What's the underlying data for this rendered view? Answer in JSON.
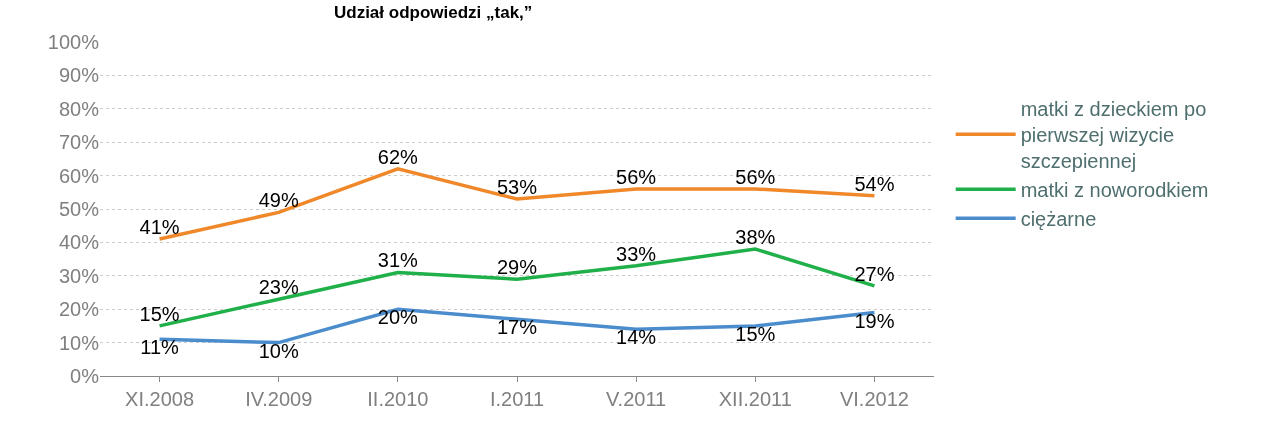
{
  "chart_data": {
    "type": "line",
    "title": "Udział odpowiedzi „tak,”",
    "categories": [
      "XI.2008",
      "IV.2009",
      "II.2010",
      "I.2011",
      "V.2011",
      "XII.2011",
      "VI.2012"
    ],
    "series": [
      {
        "name": "matki z dzieckiem po pierwszej wizycie szczepiennej",
        "color": "#f0882a",
        "values": [
          41,
          49,
          62,
          53,
          56,
          56,
          54
        ],
        "value_labels": [
          "41%",
          "49%",
          "62%",
          "53%",
          "56%",
          "56%",
          "54%"
        ]
      },
      {
        "name": "matki z noworodkiem",
        "color": "#1fb04a",
        "values": [
          15,
          23,
          31,
          29,
          33,
          38,
          27
        ],
        "value_labels": [
          "15%",
          "23%",
          "31%",
          "29%",
          "33%",
          "38%",
          "27%"
        ]
      },
      {
        "name": "ciężarne",
        "color": "#4a8ccc",
        "values": [
          11,
          10,
          20,
          17,
          14,
          15,
          19
        ],
        "value_labels": [
          "11%",
          "10%",
          "20%",
          "17%",
          "14%",
          "15%",
          "19%"
        ]
      }
    ],
    "ylim": [
      0,
      100
    ],
    "yticks": [
      {
        "value": 0,
        "label": "0%"
      },
      {
        "value": 10,
        "label": "10%"
      },
      {
        "value": 20,
        "label": "20%"
      },
      {
        "value": 30,
        "label": "30%"
      },
      {
        "value": 40,
        "label": "40%"
      },
      {
        "value": 50,
        "label": "50%"
      },
      {
        "value": 60,
        "label": "60%"
      },
      {
        "value": 70,
        "label": "70%"
      },
      {
        "value": 80,
        "label": "80%"
      },
      {
        "value": 90,
        "label": "90%"
      },
      {
        "value": 100,
        "label": "100%"
      }
    ],
    "grid": "y",
    "legend": "right",
    "marker": "none",
    "line_style": "solid"
  }
}
